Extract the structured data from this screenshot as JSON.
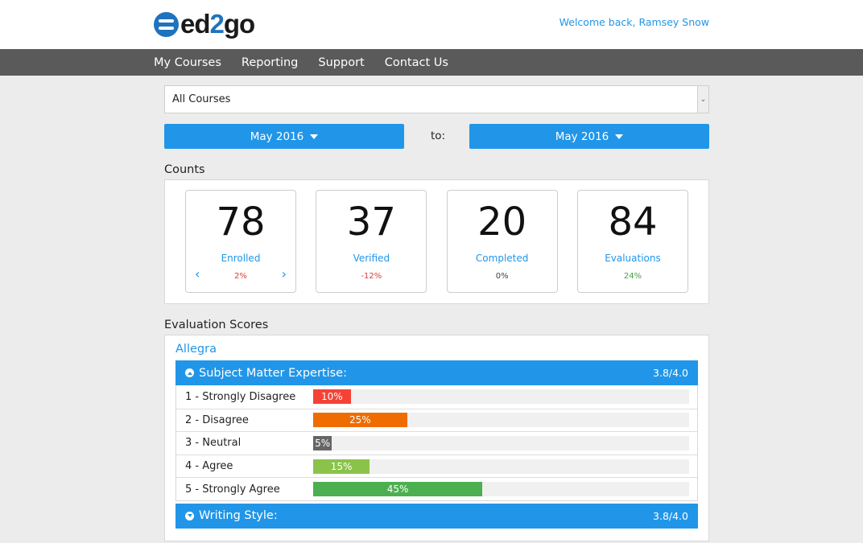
{
  "brand": {
    "pre": "ed",
    "two": "2",
    "post": "go"
  },
  "welcome": "Welcome back, Ramsey Snow",
  "nav": [
    {
      "label": "My Courses"
    },
    {
      "label": "Reporting"
    },
    {
      "label": "Support"
    },
    {
      "label": "Contact Us"
    }
  ],
  "filters": {
    "course": "All Courses",
    "from": "May 2016",
    "to_label": "to:",
    "to": "May 2016"
  },
  "counts": {
    "title": "Counts",
    "cards": [
      {
        "value": "78",
        "label": "Enrolled",
        "change": "2%",
        "trend": "negative"
      },
      {
        "value": "37",
        "label": "Verified",
        "change": "-12%",
        "trend": "negative"
      },
      {
        "value": "20",
        "label": "Completed",
        "change": "0%",
        "trend": "neutral"
      },
      {
        "value": "84",
        "label": "Evaluations",
        "change": "24%",
        "trend": "positive"
      }
    ]
  },
  "evaluation": {
    "title": "Evaluation Scores",
    "instructor": "Allegra",
    "sections": [
      {
        "name": "Subject Matter Expertise:",
        "score": "3.8/4.0",
        "expanded": true,
        "rows": [
          {
            "label": "1 - Strongly Disagree",
            "percent": 10,
            "text": "10%",
            "color": "#f44336"
          },
          {
            "label": "2 - Disagree",
            "percent": 25,
            "text": "25%",
            "color": "#ef6c00"
          },
          {
            "label": "3 - Neutral",
            "percent": 5,
            "text": "5%",
            "color": "#666666"
          },
          {
            "label": "4 - Agree",
            "percent": 15,
            "text": "15%",
            "color": "#8bc34a"
          },
          {
            "label": "5 - Strongly Agree",
            "percent": 45,
            "text": "45%",
            "color": "#4caf50"
          }
        ]
      },
      {
        "name": "Writing Style:",
        "score": "3.8/4.0",
        "expanded": false
      }
    ]
  }
}
